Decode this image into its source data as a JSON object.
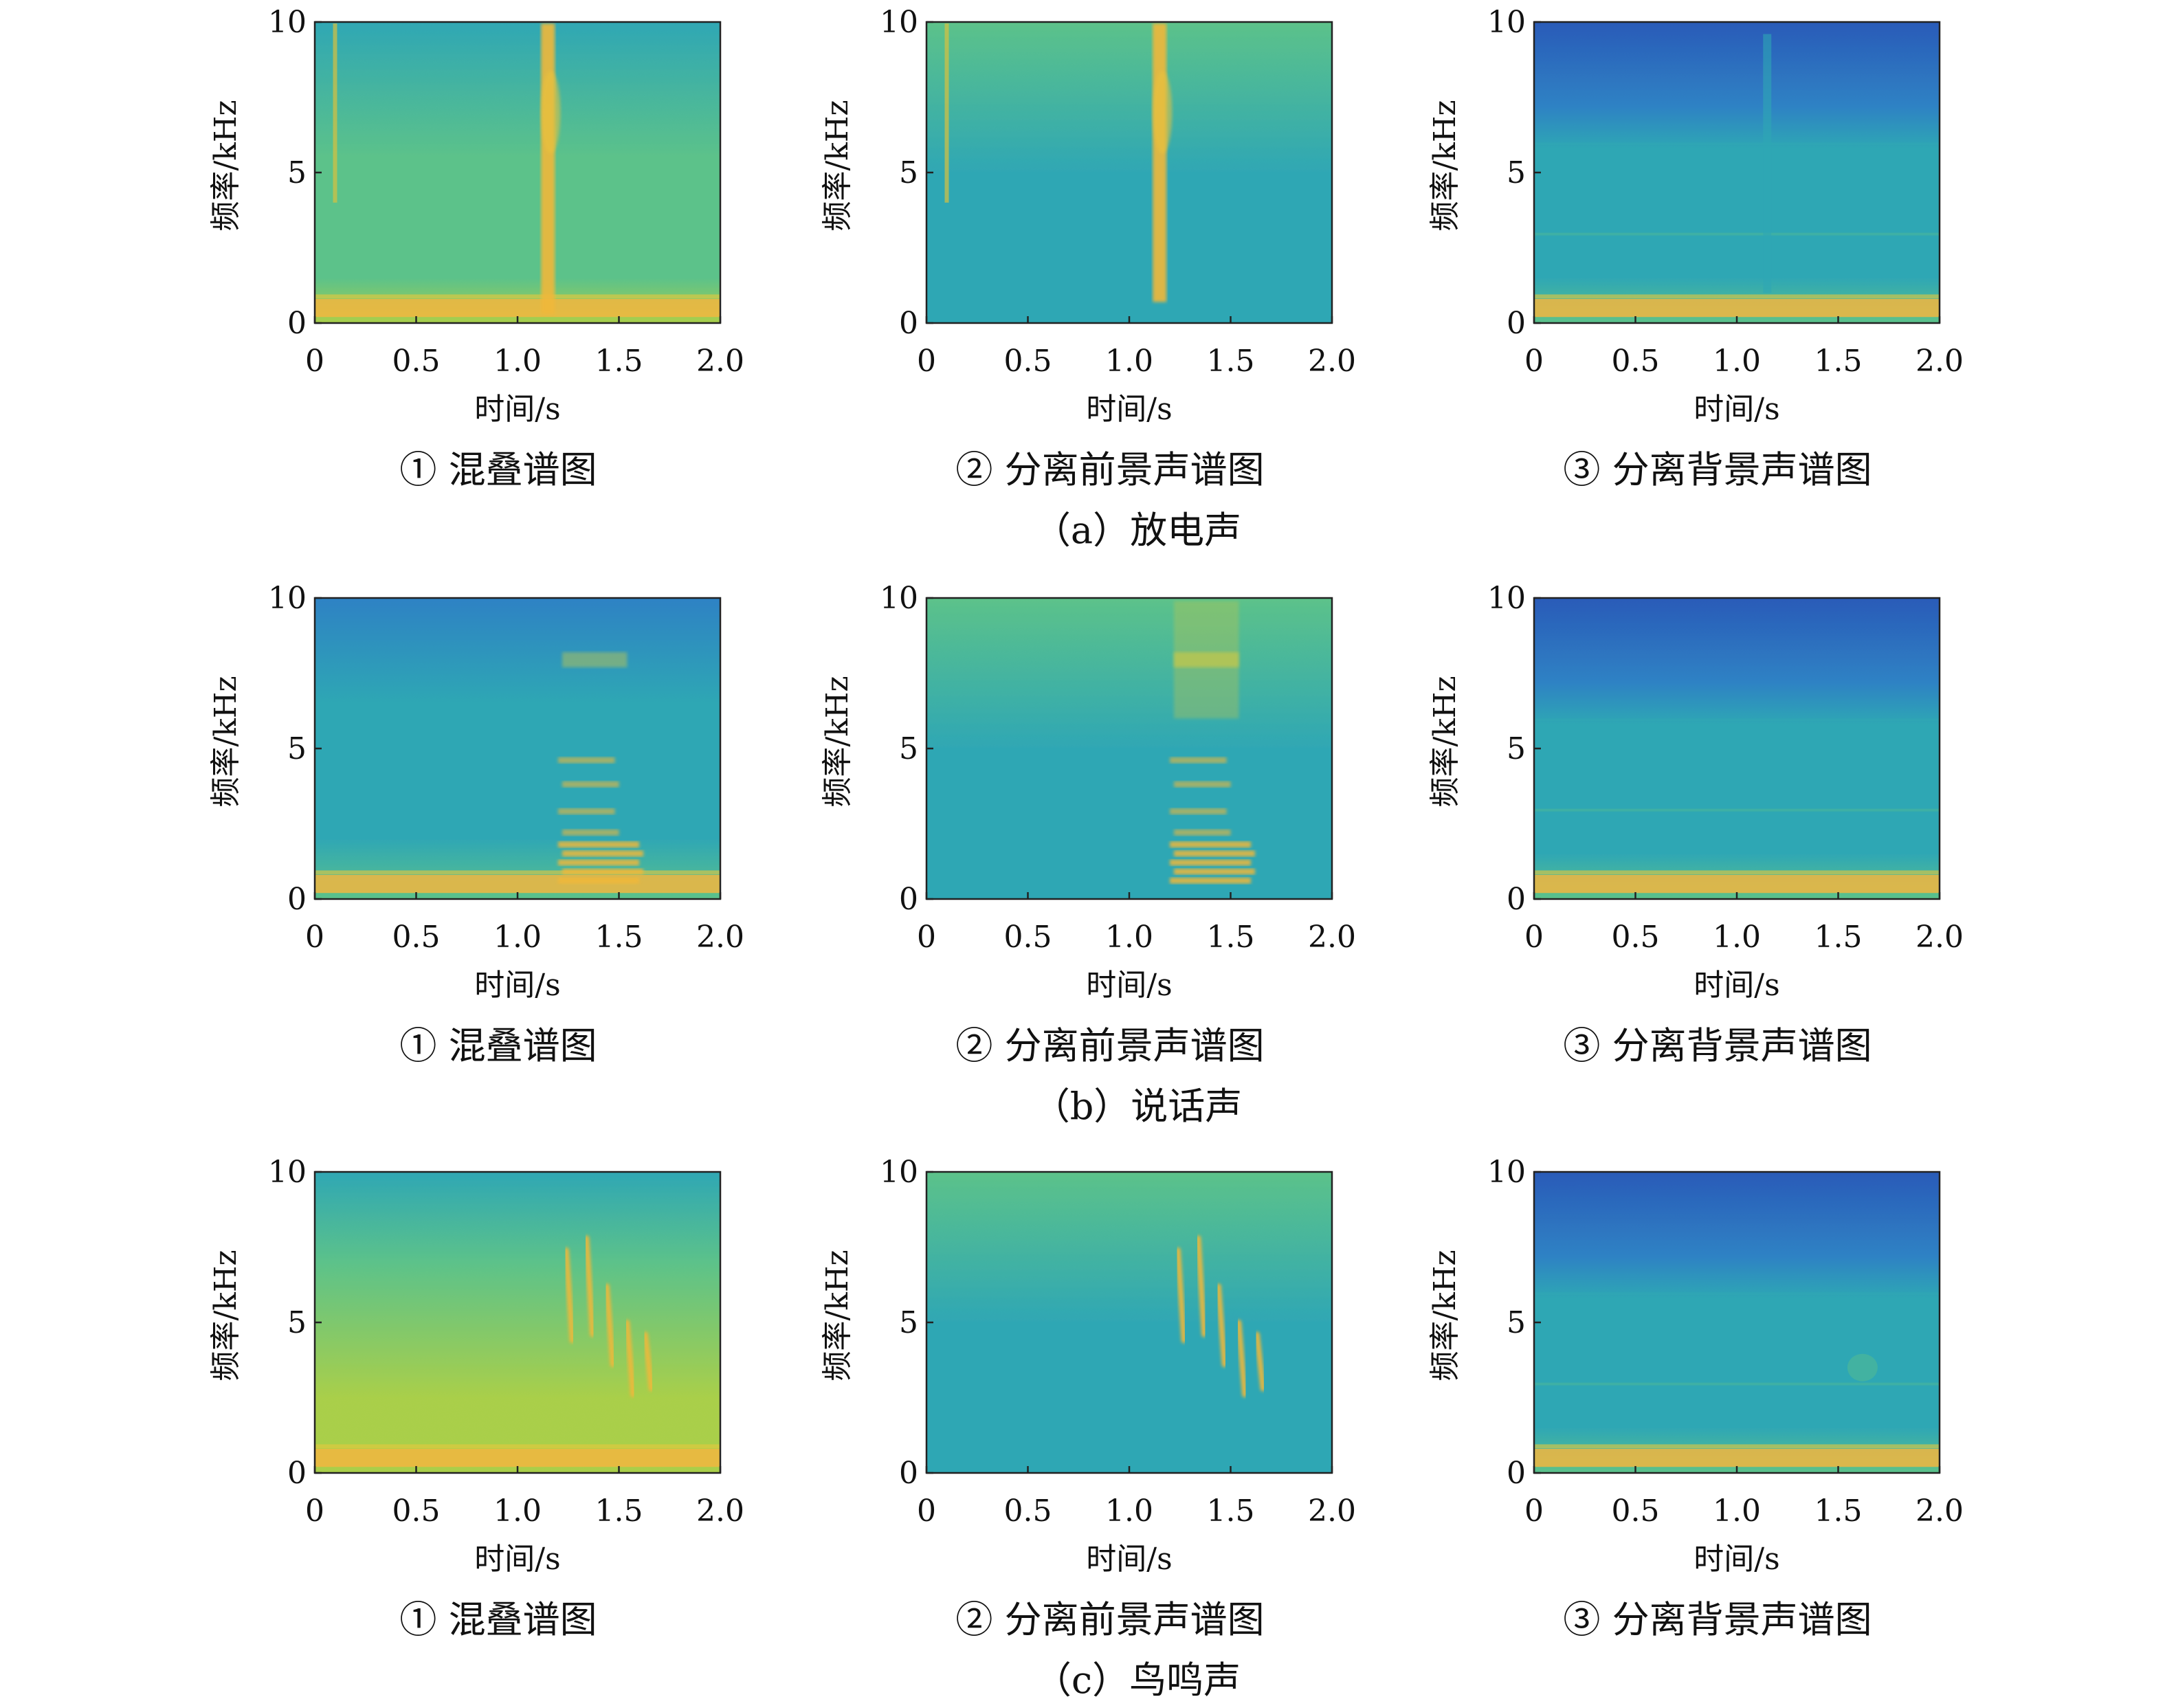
{
  "figure": {
    "rows": [
      {
        "caption": "（a）放电声",
        "panels": [
          {
            "caption": "① 混叠谱图",
            "variant": "mix",
            "event": "discharge"
          },
          {
            "caption": "② 分离前景声谱图",
            "variant": "fg",
            "event": "discharge"
          },
          {
            "caption": "③ 分离背景声谱图",
            "variant": "bg",
            "event": "discharge"
          }
        ]
      },
      {
        "caption": "（b）说话声",
        "panels": [
          {
            "caption": "① 混叠谱图",
            "variant": "mix",
            "event": "speech"
          },
          {
            "caption": "② 分离前景声谱图",
            "variant": "fg",
            "event": "speech"
          },
          {
            "caption": "③ 分离背景声谱图",
            "variant": "bg",
            "event": "speech"
          }
        ]
      },
      {
        "caption": "（c）鸟鸣声",
        "panels": [
          {
            "caption": "① 混叠谱图",
            "variant": "mix",
            "event": "bird"
          },
          {
            "caption": "② 分离前景声谱图",
            "variant": "fg",
            "event": "bird"
          },
          {
            "caption": "③ 分离背景声谱图",
            "variant": "bg",
            "event": "bird"
          }
        ]
      }
    ]
  },
  "chart_data": {
    "type": "heatmap",
    "xlabel": "时间/s",
    "ylabel": "频率/kHz",
    "x_ticks": [
      "0",
      "0.5",
      "1.0",
      "1.5",
      "2.0"
    ],
    "x_tick_values": [
      0,
      0.5,
      1.0,
      1.5,
      2.0
    ],
    "y_ticks": [
      "0",
      "5",
      "10"
    ],
    "y_tick_values": [
      0,
      5,
      10
    ],
    "xlim": [
      0,
      2.0
    ],
    "ylim": [
      0,
      10
    ],
    "colormap": [
      "#2b5bb8",
      "#2e82c4",
      "#2fa7b4",
      "#5cc28a",
      "#a9cf4a",
      "#f0b83a"
    ],
    "events": {
      "discharge": {
        "time_s": 1.15,
        "freq_khz": [
          0.5,
          10
        ]
      },
      "speech": {
        "time_s": [
          1.2,
          1.6
        ],
        "freq_khz": [
          0.3,
          8.5
        ]
      },
      "bird": {
        "time_s": [
          1.2,
          1.68
        ],
        "freq_khz": [
          2.5,
          7.8
        ]
      }
    },
    "background": {
      "low_band_khz": [
        0.2,
        0.8
      ]
    }
  }
}
